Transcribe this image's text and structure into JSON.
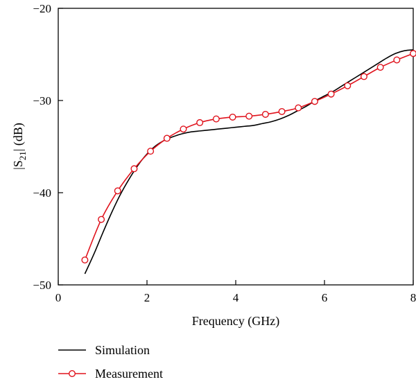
{
  "chart_data": {
    "type": "line",
    "xlabel": "Frequency (GHz)",
    "ylabel_prefix": "|S",
    "ylabel_sub": "21",
    "ylabel_suffix": "| (dB)",
    "xlim": [
      0,
      8
    ],
    "ylim": [
      -50,
      -20
    ],
    "xticks": [
      0,
      2,
      4,
      6,
      8
    ],
    "yticks": [
      -20,
      -30,
      -40,
      -50
    ],
    "xtick_labels": [
      "0",
      "2",
      "4",
      "6",
      "8"
    ],
    "ytick_labels": [
      "−20",
      "−30",
      "−40",
      "−50"
    ],
    "grid": false,
    "legend_position": "below plot, left",
    "series": [
      {
        "name": "Simulation",
        "color": "#000000",
        "marker": "none",
        "x": [
          0.6,
          0.8,
          1.0,
          1.2,
          1.4,
          1.6,
          1.8,
          2.0,
          2.2,
          2.4,
          2.6,
          2.8,
          3.0,
          3.2,
          3.4,
          3.6,
          3.8,
          4.0,
          4.2,
          4.4,
          4.6,
          4.8,
          5.0,
          5.2,
          5.4,
          5.6,
          5.8,
          6.0,
          6.2,
          6.4,
          6.6,
          6.8,
          7.0,
          7.2,
          7.4,
          7.6,
          7.8,
          8.0
        ],
        "y": [
          -48.8,
          -46.7,
          -44.4,
          -42.2,
          -40.2,
          -38.5,
          -37.0,
          -35.8,
          -34.9,
          -34.3,
          -33.9,
          -33.6,
          -33.4,
          -33.3,
          -33.2,
          -33.1,
          -33.0,
          -32.9,
          -32.8,
          -32.7,
          -32.5,
          -32.3,
          -32.0,
          -31.6,
          -31.1,
          -30.6,
          -30.0,
          -29.5,
          -29.0,
          -28.4,
          -27.8,
          -27.2,
          -26.6,
          -26.0,
          -25.4,
          -24.9,
          -24.6,
          -24.5
        ]
      },
      {
        "name": "Measurement",
        "color": "#e0121c",
        "marker": "circle",
        "x": [
          0.6,
          0.97,
          1.34,
          1.71,
          2.08,
          2.45,
          2.82,
          3.19,
          3.56,
          3.93,
          4.3,
          4.67,
          5.04,
          5.41,
          5.78,
          6.15,
          6.52,
          6.89,
          7.26,
          7.63,
          8.0
        ],
        "y": [
          -47.3,
          -42.9,
          -39.8,
          -37.4,
          -35.5,
          -34.1,
          -33.1,
          -32.4,
          -32.0,
          -31.8,
          -31.7,
          -31.5,
          -31.2,
          -30.8,
          -30.1,
          -29.3,
          -28.4,
          -27.4,
          -26.4,
          -25.6,
          -24.9
        ]
      }
    ]
  }
}
